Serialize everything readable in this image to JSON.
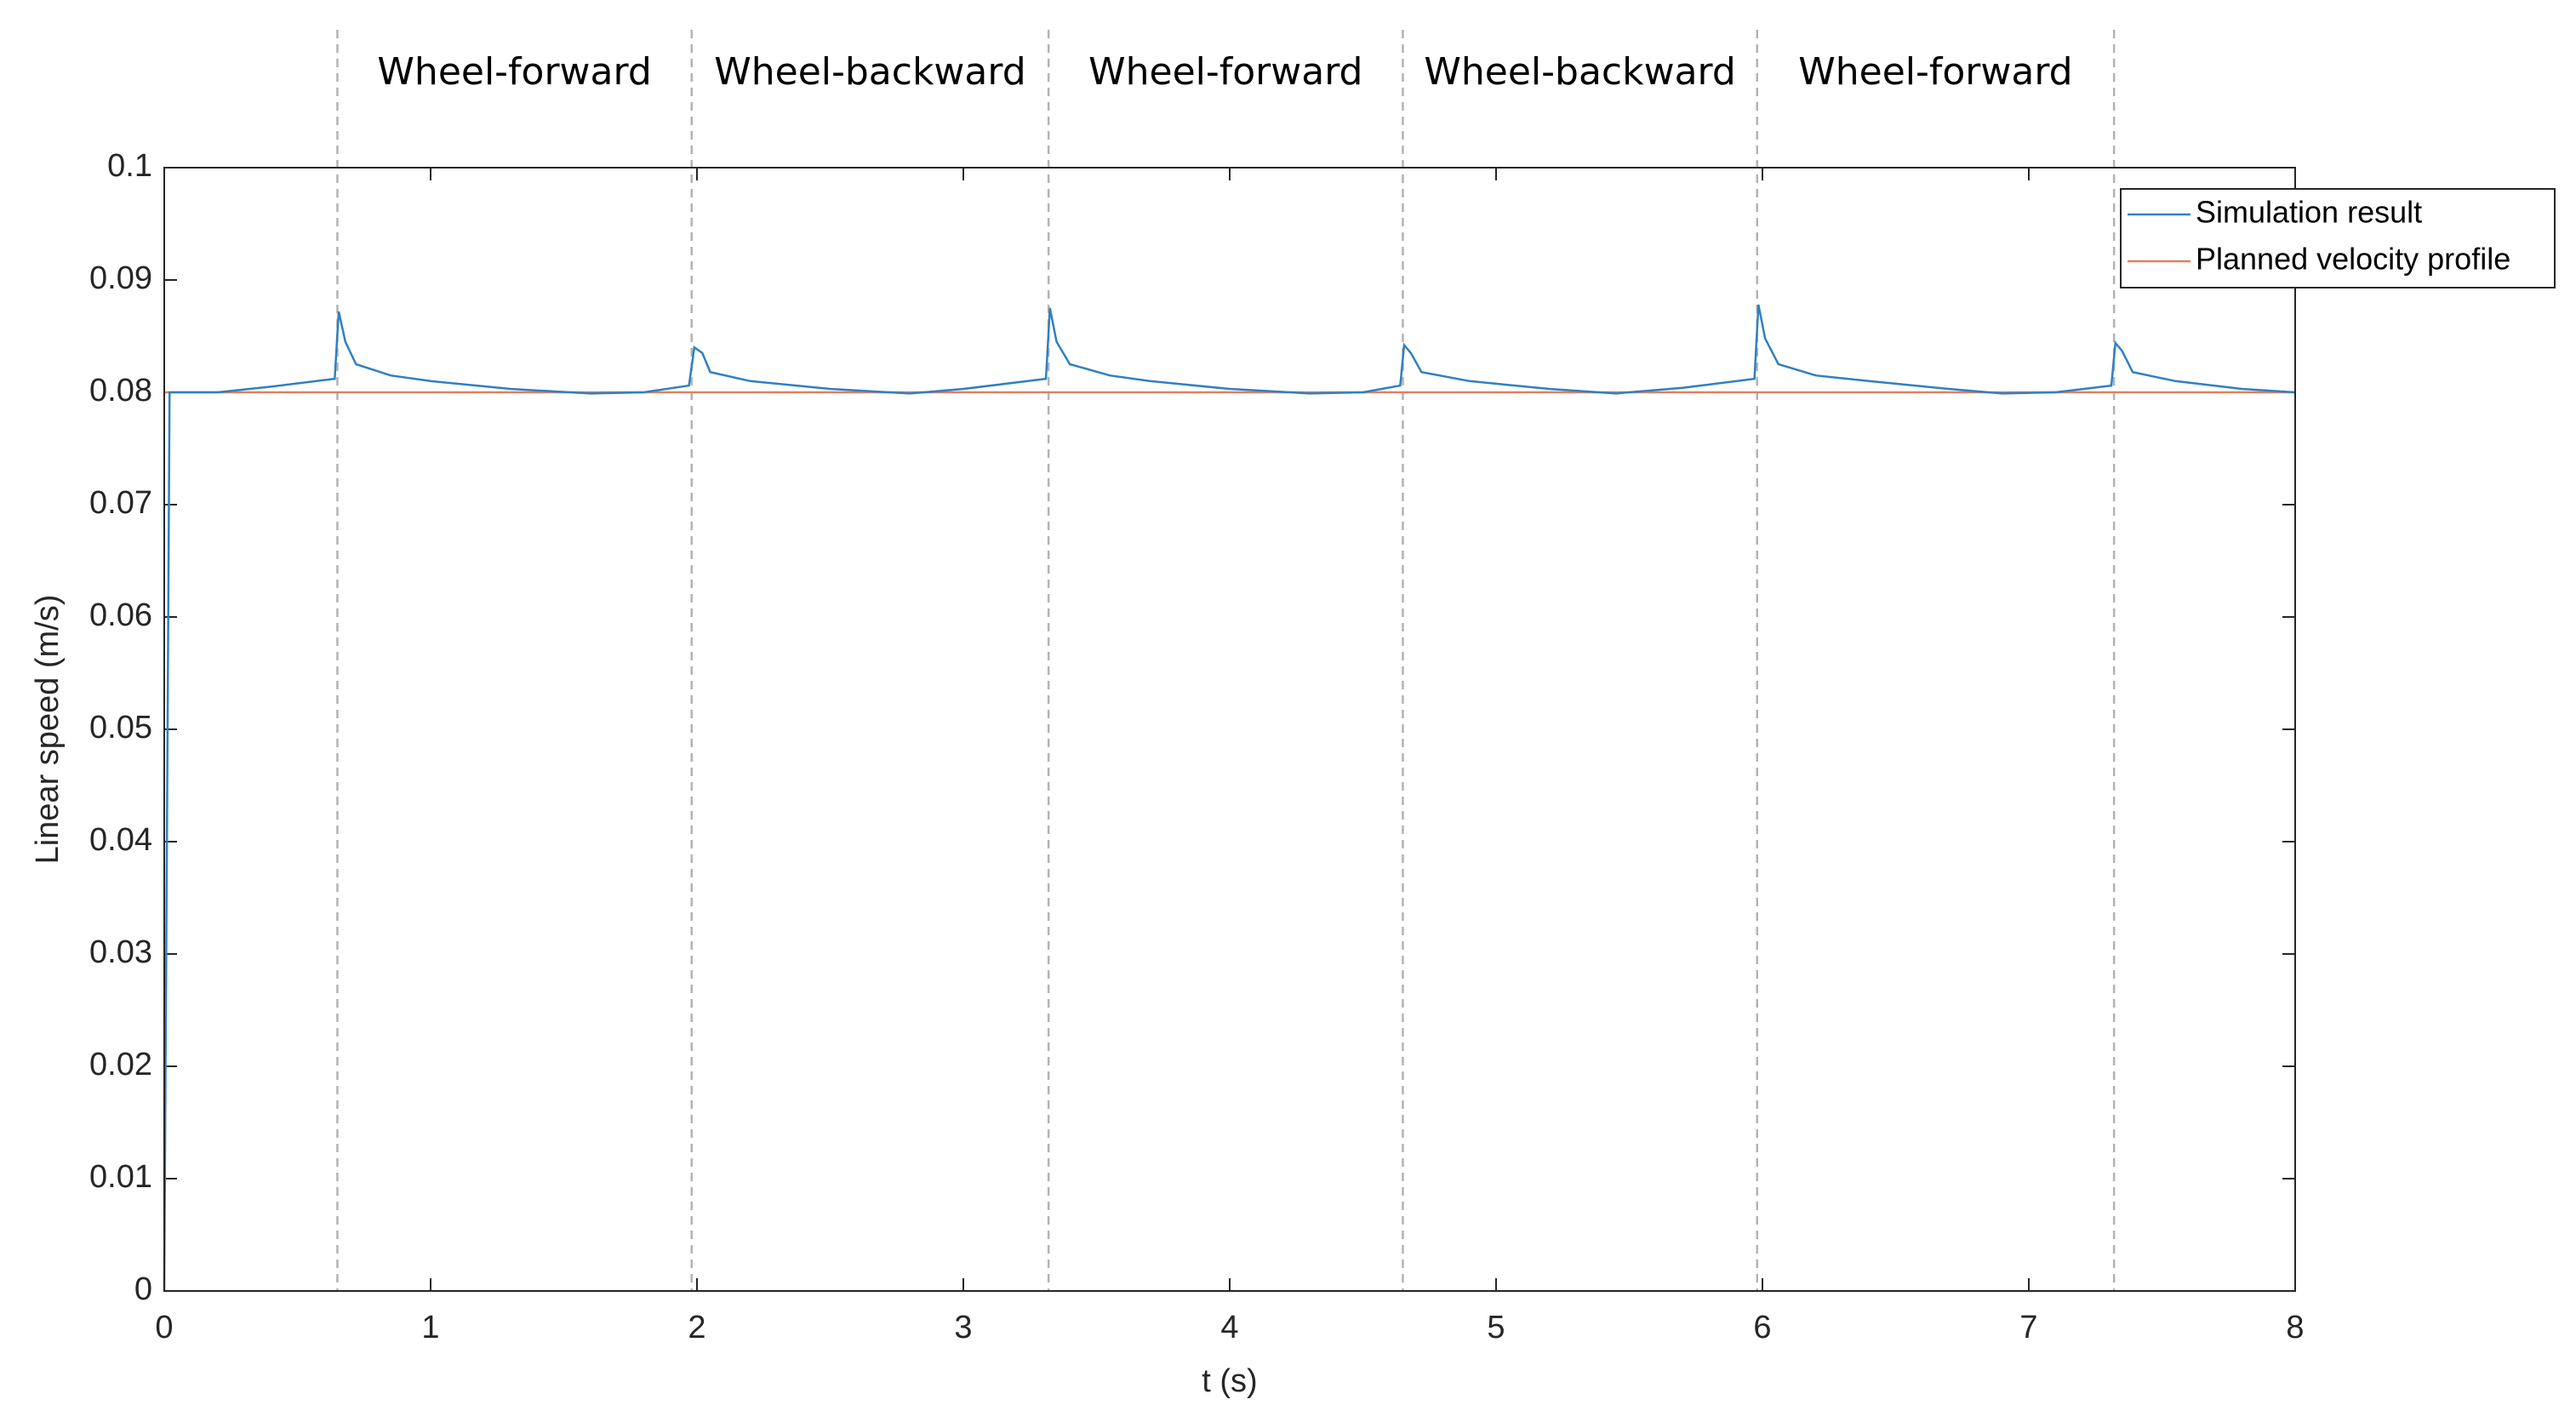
{
  "chart_data": {
    "type": "line",
    "xlabel": "t (s)",
    "ylabel": "Linear speed (m/s)",
    "xlim": [
      0,
      8
    ],
    "xticks": [
      0,
      1,
      2,
      3,
      4,
      5,
      6,
      7,
      8
    ],
    "ylim": [
      0,
      0.1
    ],
    "yticks": [
      0,
      0.01,
      0.02,
      0.03,
      0.04,
      0.05,
      0.06,
      0.07,
      0.08,
      0.09,
      0.1
    ],
    "grid": false,
    "legend": "northeast",
    "phase_boundaries": [
      0.65,
      1.98,
      3.32,
      4.65,
      5.98,
      7.32
    ],
    "phases": [
      "Wheel-forward",
      "Wheel-backward",
      "Wheel-forward",
      "Wheel-backward",
      "Wheel-forward"
    ],
    "series": [
      {
        "name": "Simulation result",
        "color": "#2f80c2",
        "x": [
          0,
          0.02,
          0.2,
          0.4,
          0.64,
          0.655,
          0.68,
          0.72,
          0.85,
          1.0,
          1.3,
          1.6,
          1.8,
          1.97,
          1.99,
          2.02,
          2.05,
          2.2,
          2.5,
          2.8,
          3.0,
          3.31,
          3.325,
          3.35,
          3.4,
          3.55,
          3.7,
          4.0,
          4.3,
          4.5,
          4.64,
          4.655,
          4.68,
          4.72,
          4.9,
          5.2,
          5.45,
          5.7,
          5.97,
          5.985,
          6.01,
          6.06,
          6.2,
          6.4,
          6.7,
          6.9,
          7.1,
          7.31,
          7.325,
          7.35,
          7.39,
          7.55,
          7.8,
          8.0
        ],
        "values": [
          0,
          0.08,
          0.08,
          0.0805,
          0.0812,
          0.0872,
          0.0845,
          0.0825,
          0.0815,
          0.081,
          0.0803,
          0.0799,
          0.08,
          0.0806,
          0.084,
          0.0835,
          0.0818,
          0.081,
          0.0803,
          0.0799,
          0.0803,
          0.0812,
          0.0875,
          0.0845,
          0.0825,
          0.0815,
          0.081,
          0.0803,
          0.0799,
          0.08,
          0.0806,
          0.0842,
          0.0835,
          0.0818,
          0.081,
          0.0803,
          0.0799,
          0.0804,
          0.0812,
          0.0878,
          0.0848,
          0.0825,
          0.0815,
          0.081,
          0.0803,
          0.0799,
          0.08,
          0.0806,
          0.0844,
          0.0837,
          0.0818,
          0.081,
          0.0803,
          0.08
        ]
      },
      {
        "name": "Planned velocity profile",
        "color": "#e0805e",
        "x": [
          0,
          8
        ],
        "values": [
          0.08,
          0.08
        ]
      }
    ]
  }
}
